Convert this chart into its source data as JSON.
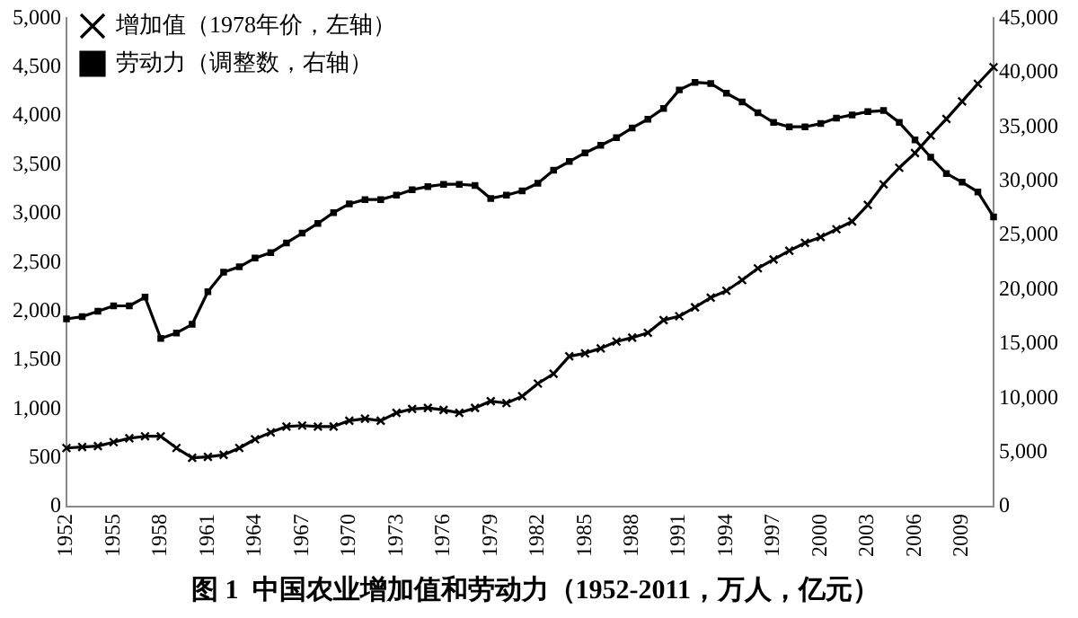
{
  "chart_data": {
    "type": "line",
    "title": "图 1  中国农业增加值和劳动力（1952-2011，万人，亿元）",
    "categories": [
      "1952",
      null,
      null,
      "1955",
      null,
      null,
      "1958",
      null,
      null,
      "1961",
      null,
      null,
      "1964",
      null,
      null,
      "1967",
      null,
      null,
      "1970",
      null,
      null,
      "1973",
      null,
      null,
      "1976",
      null,
      null,
      "1979",
      null,
      null,
      "1982",
      null,
      null,
      "1985",
      null,
      null,
      "1988",
      null,
      null,
      "1991",
      null,
      null,
      "1994",
      null,
      null,
      "1997",
      null,
      null,
      "2000",
      null,
      null,
      "2003",
      null,
      null,
      "2006",
      null,
      null,
      "2009",
      null,
      null
    ],
    "series": [
      {
        "name": "增加值（1978年价，左轴）",
        "color": "#000000",
        "marker": "cross",
        "values": [
          600,
          610,
          620,
          660,
          700,
          720,
          720,
          600,
          500,
          510,
          530,
          600,
          690,
          760,
          820,
          830,
          820,
          820,
          880,
          900,
          880,
          960,
          1000,
          1010,
          990,
          960,
          1010,
          1080,
          1060,
          1130,
          1260,
          1360,
          1540,
          1570,
          1620,
          1690,
          1730,
          1780,
          1910,
          1950,
          2040,
          2140,
          2210,
          2320,
          2440,
          2530,
          2620,
          2700,
          2760,
          2840,
          2920,
          3090,
          3300,
          3470,
          3620,
          3800,
          3970,
          4150,
          4330,
          4500
        ]
      },
      {
        "name": "劳动力（调整数，右轴）",
        "color": "#000000",
        "marker": "square",
        "axis": "y2",
        "values": [
          17300,
          17500,
          18000,
          18500,
          18500,
          19300,
          15500,
          16000,
          16800,
          19800,
          21600,
          22100,
          22900,
          23400,
          24300,
          25200,
          26100,
          27100,
          27900,
          28300,
          28300,
          28700,
          29200,
          29500,
          29700,
          29700,
          29600,
          28400,
          28700,
          29100,
          29800,
          31000,
          31800,
          32600,
          33300,
          34000,
          34900,
          35700,
          36700,
          38400,
          39100,
          39000,
          38100,
          37300,
          36300,
          35400,
          35000,
          35000,
          35300,
          35800,
          36100,
          36400,
          36500,
          35400,
          33800,
          32200,
          30700,
          29900,
          29000,
          26700
        ]
      }
    ],
    "ylim": [
      0,
      5000
    ],
    "yticks": [
      {
        "value": 0,
        "label": "0"
      },
      {
        "value": 500,
        "label": "500"
      },
      {
        "value": 1000,
        "label": "1,000"
      },
      {
        "value": 1500,
        "label": "1,500"
      },
      {
        "value": 2000,
        "label": "2,000"
      },
      {
        "value": 2500,
        "label": "2,500"
      },
      {
        "value": 3000,
        "label": "3,000"
      },
      {
        "value": 3500,
        "label": "3,500"
      },
      {
        "value": 4000,
        "label": "4,000"
      },
      {
        "value": 4500,
        "label": "4,500"
      },
      {
        "value": 5000,
        "label": "5,000"
      }
    ],
    "y2lim": [
      0,
      45000
    ],
    "y2ticks": [
      {
        "value": 0,
        "label": "0"
      },
      {
        "value": 5000,
        "label": "5,000"
      },
      {
        "value": 10000,
        "label": "10,000"
      },
      {
        "value": 15000,
        "label": "15,000"
      },
      {
        "value": 20000,
        "label": "20,000"
      },
      {
        "value": 25000,
        "label": "25,000"
      },
      {
        "value": 30000,
        "label": "30,000"
      },
      {
        "value": 35000,
        "label": "35,000"
      },
      {
        "value": 40000,
        "label": "40,000"
      },
      {
        "value": 45000,
        "label": "45,000"
      }
    ],
    "grid": false,
    "legend": "top left",
    "line_style": "solid"
  }
}
